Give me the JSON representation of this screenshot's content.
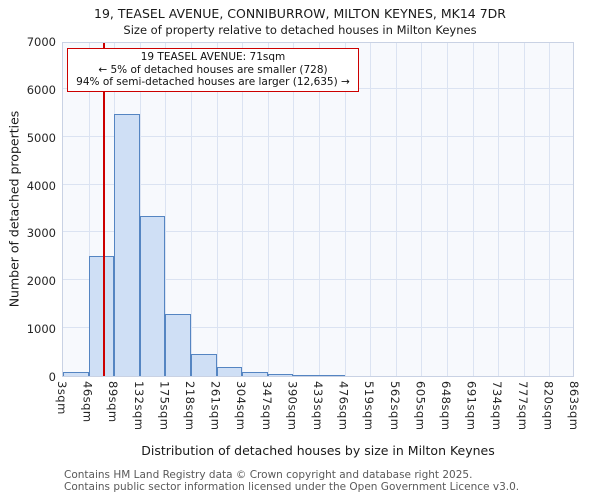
{
  "chart_data": {
    "type": "bar",
    "title": "19, TEASEL AVENUE, CONNIBURROW, MILTON KEYNES, MK14 7DR",
    "subtitle": "Size of property relative to detached houses in Milton Keynes",
    "xlabel": "Distribution of detached houses by size in Milton Keynes",
    "ylabel": "Number of detached properties",
    "bin_edges": [
      3,
      46,
      89,
      132,
      175,
      218,
      261,
      304,
      347,
      390,
      433,
      476,
      519,
      562,
      605,
      648,
      691,
      734,
      777,
      820,
      863
    ],
    "tick_labels": [
      "3sqm",
      "46sqm",
      "89sqm",
      "132sqm",
      "175sqm",
      "218sqm",
      "261sqm",
      "304sqm",
      "347sqm",
      "390sqm",
      "433sqm",
      "476sqm",
      "519sqm",
      "562sqm",
      "605sqm",
      "648sqm",
      "691sqm",
      "734sqm",
      "777sqm",
      "820sqm",
      "863sqm"
    ],
    "values": [
      80,
      2500,
      5480,
      3350,
      1300,
      450,
      190,
      80,
      40,
      20,
      10,
      0,
      0,
      0,
      0,
      0,
      0,
      0,
      0,
      0
    ],
    "ylim": [
      0,
      7000
    ],
    "yticks": [
      0,
      1000,
      2000,
      3000,
      4000,
      5000,
      6000,
      7000
    ],
    "grid": true,
    "legend": null,
    "marker": {
      "value": 71,
      "color": "#cc0000"
    },
    "annotation": {
      "line1": "19 TEASEL AVENUE: 71sqm",
      "line2": "← 5% of detached houses are smaller (728)",
      "line3": "94% of semi-detached houses are larger (12,635) →"
    },
    "colors": {
      "bar_fill": "#cfdff5",
      "bar_edge": "#5585c2",
      "marker_line": "#cc0000",
      "grid_line": "#dbe3f2",
      "plot_bg": "#f7f9fd"
    }
  },
  "footer": {
    "line1": "Contains HM Land Registry data © Crown copyright and database right 2025.",
    "line2": "Contains public sector information licensed under the Open Government Licence v3.0."
  }
}
